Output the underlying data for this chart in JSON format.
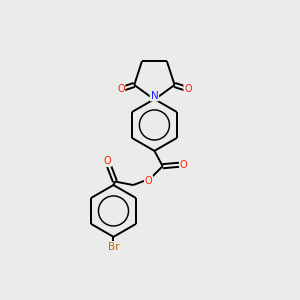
{
  "bg_color": "#ebebeb",
  "bond_color": "#000000",
  "N_color": "#2222ff",
  "O_color": "#ff2200",
  "Br_color": "#bb6600",
  "line_width": 1.4,
  "fig_width": 3.0,
  "fig_height": 3.0,
  "dpi": 100,
  "xlim": [
    0,
    10
  ],
  "ylim": [
    0,
    10
  ]
}
